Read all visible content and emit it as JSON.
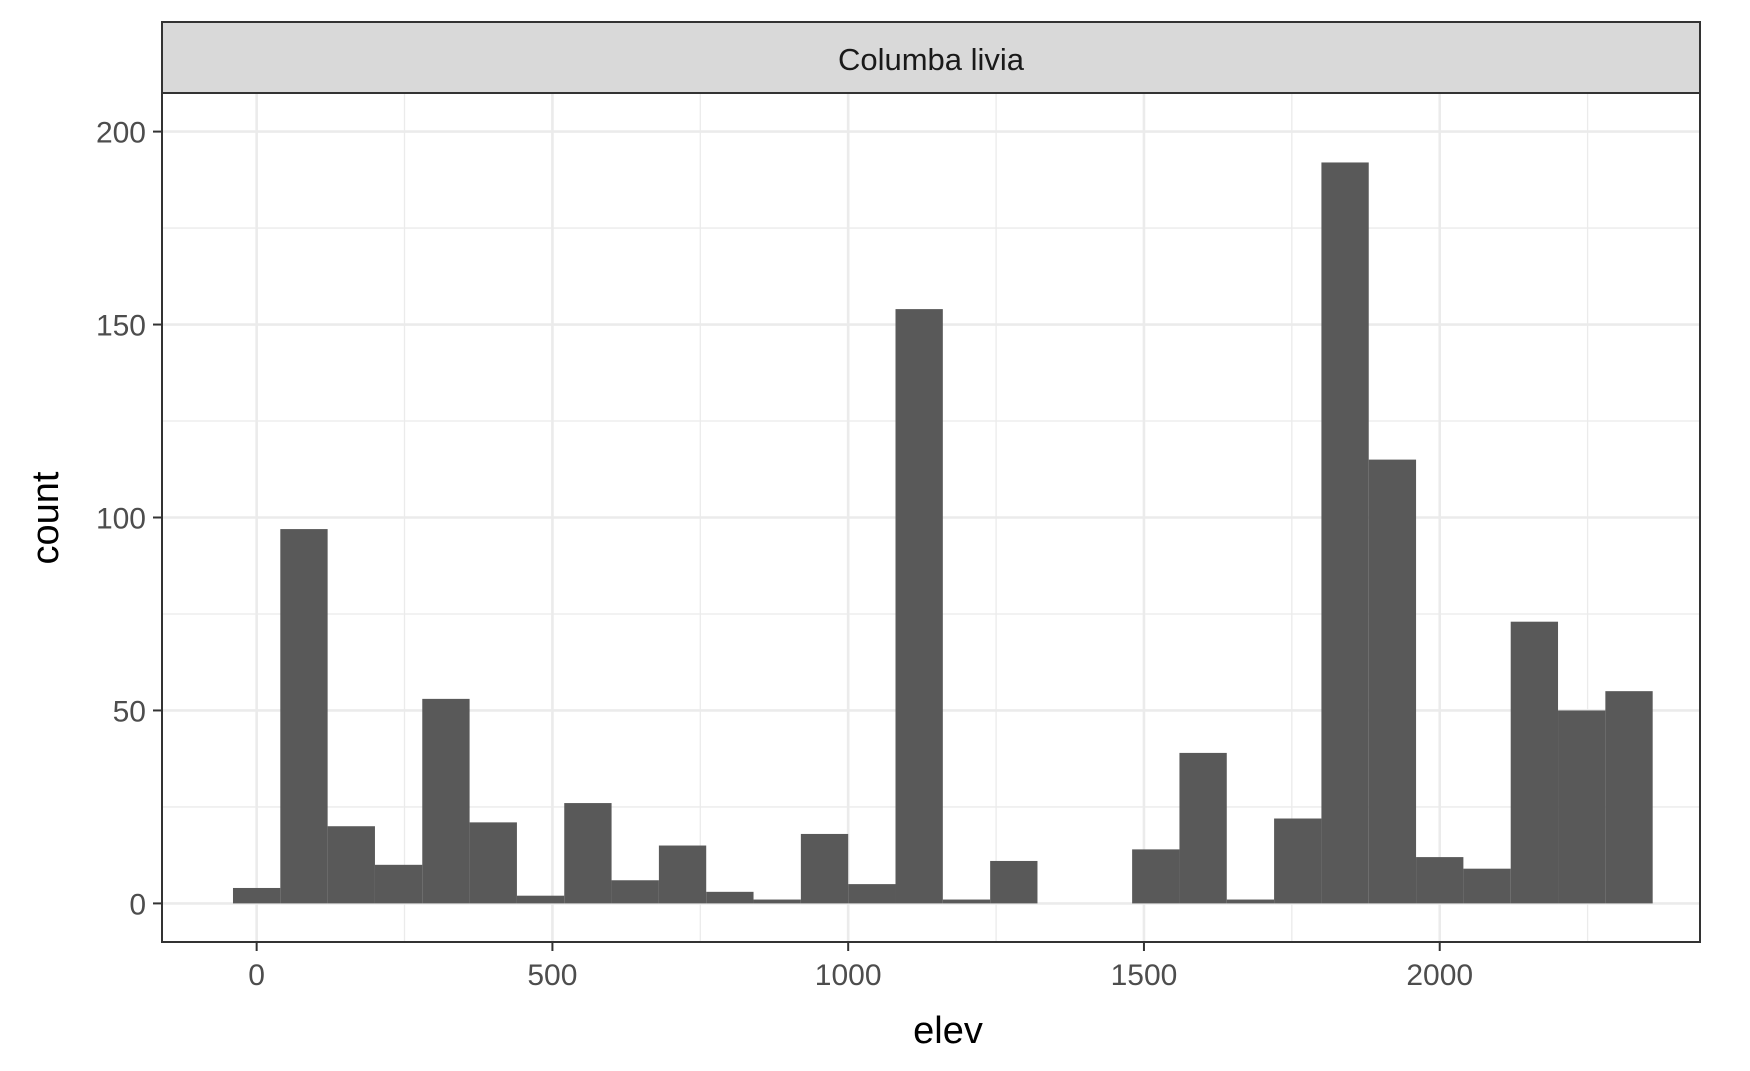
{
  "chart_data": {
    "type": "bar",
    "facet_label": "Columba livia",
    "xlabel": "elev",
    "ylabel": "count",
    "xlim": [
      -160,
      2440
    ],
    "ylim": [
      -10,
      210
    ],
    "x_ticks": [
      0,
      500,
      1000,
      1500,
      2000
    ],
    "x_tick_labels": [
      "0",
      "500",
      "1000",
      "1500",
      "2000"
    ],
    "y_ticks": [
      0,
      50,
      100,
      150,
      200
    ],
    "y_tick_labels": [
      "0",
      "50",
      "100",
      "150",
      "200"
    ],
    "bin_width": 80,
    "bins": [
      {
        "x0": -40,
        "x1": 40,
        "count": 4
      },
      {
        "x0": 40,
        "x1": 120,
        "count": 97
      },
      {
        "x0": 120,
        "x1": 200,
        "count": 20
      },
      {
        "x0": 200,
        "x1": 280,
        "count": 10
      },
      {
        "x0": 280,
        "x1": 360,
        "count": 53
      },
      {
        "x0": 360,
        "x1": 440,
        "count": 21
      },
      {
        "x0": 440,
        "x1": 520,
        "count": 2
      },
      {
        "x0": 520,
        "x1": 600,
        "count": 26
      },
      {
        "x0": 600,
        "x1": 680,
        "count": 6
      },
      {
        "x0": 680,
        "x1": 760,
        "count": 15
      },
      {
        "x0": 760,
        "x1": 840,
        "count": 3
      },
      {
        "x0": 840,
        "x1": 920,
        "count": 1
      },
      {
        "x0": 920,
        "x1": 1000,
        "count": 18
      },
      {
        "x0": 1000,
        "x1": 1080,
        "count": 5
      },
      {
        "x0": 1080,
        "x1": 1160,
        "count": 154
      },
      {
        "x0": 1160,
        "x1": 1240,
        "count": 1
      },
      {
        "x0": 1240,
        "x1": 1320,
        "count": 11
      },
      {
        "x0": 1320,
        "x1": 1400,
        "count": 0
      },
      {
        "x0": 1400,
        "x1": 1480,
        "count": 0
      },
      {
        "x0": 1480,
        "x1": 1560,
        "count": 14
      },
      {
        "x0": 1560,
        "x1": 1640,
        "count": 39
      },
      {
        "x0": 1640,
        "x1": 1720,
        "count": 1
      },
      {
        "x0": 1720,
        "x1": 1800,
        "count": 22
      },
      {
        "x0": 1800,
        "x1": 1880,
        "count": 192
      },
      {
        "x0": 1880,
        "x1": 1960,
        "count": 115
      },
      {
        "x0": 1960,
        "x1": 2040,
        "count": 12
      },
      {
        "x0": 2040,
        "x1": 2120,
        "count": 9
      },
      {
        "x0": 2120,
        "x1": 2200,
        "count": 73
      },
      {
        "x0": 2200,
        "x1": 2280,
        "count": 50
      },
      {
        "x0": 2280,
        "x1": 2360,
        "count": 55
      }
    ],
    "bar_color": "#595959",
    "panel_border_color": "#333333",
    "grid_color": "#ebebeb",
    "strip_fill": "#d9d9d9",
    "grid": true,
    "legend": "none"
  }
}
